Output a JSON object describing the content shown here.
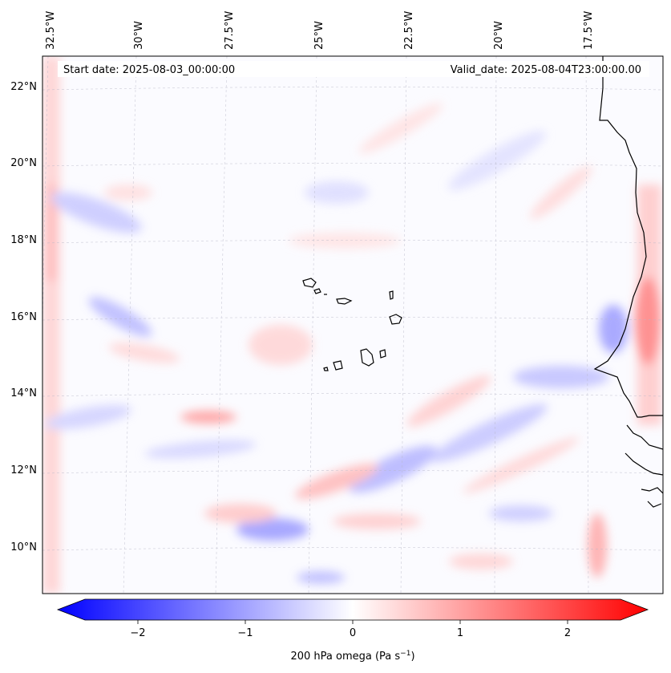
{
  "header": {
    "start_date": "Start date: 2025-08-03_00:00:00",
    "valid_date": "Valid_date: 2025-08-04T23:00:00.00"
  },
  "map": {
    "lon_labels": [
      "32.5°W",
      "30°W",
      "27.5°W",
      "25°W",
      "22.5°W",
      "20°W",
      "17.5°W"
    ],
    "lat_labels": [
      "22°N",
      "20°N",
      "18°N",
      "16°N",
      "14°N",
      "12°N",
      "10°N"
    ],
    "features": [
      "Cape Verde islands",
      "West African coastline"
    ]
  },
  "colorbar": {
    "ticks": [
      "−2",
      "−1",
      "0",
      "1",
      "2"
    ],
    "tick_values": [
      -2,
      -1,
      0,
      1,
      2
    ],
    "range": [
      -2.5,
      2.5
    ],
    "label_main": "200 hPa omega (Pa s",
    "label_sup": "−1",
    "label_end": ")",
    "colormap": "bwr",
    "color_low": "#0000ff",
    "color_mid": "#ffffff",
    "color_high": "#ff0000"
  }
}
